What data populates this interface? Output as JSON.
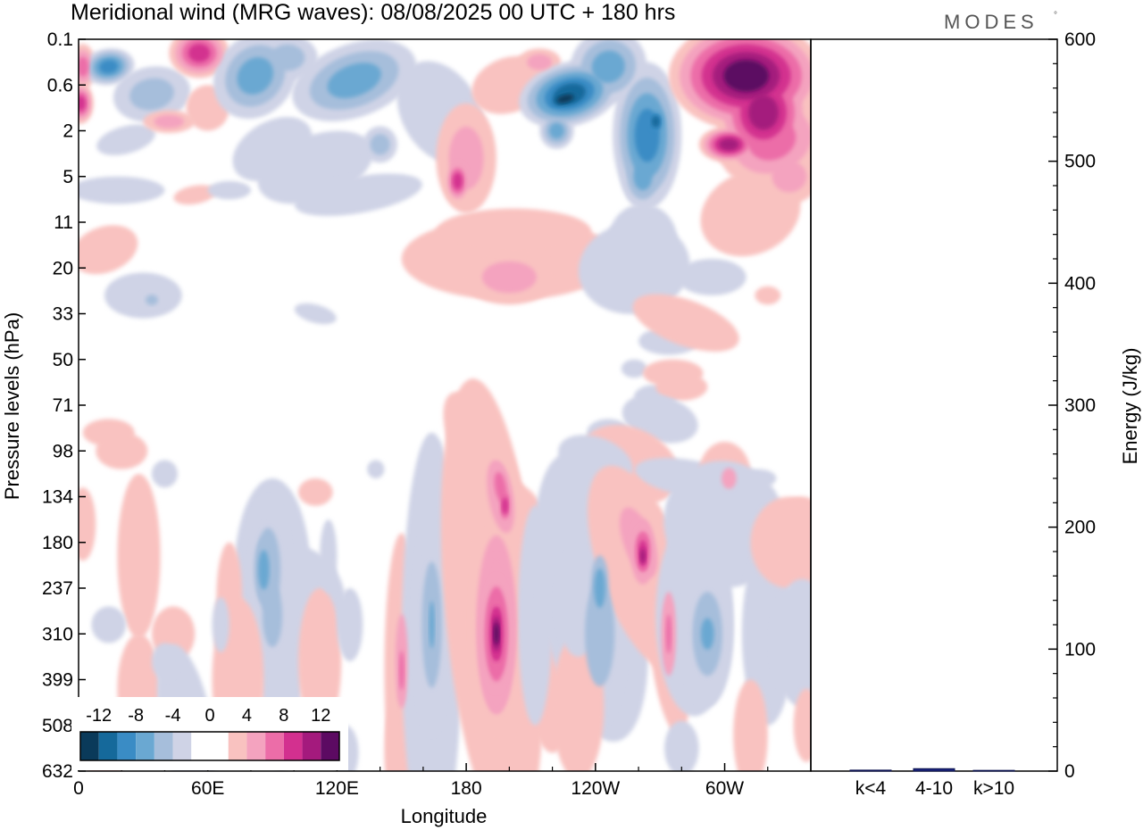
{
  "chart_data": {
    "type": "heatmap",
    "title": "Meridional wind (MRG waves):  08/08/2025  00 UTC  + 180 hrs",
    "brand": "MODES",
    "brand_mark": "°",
    "xlabel": "Longitude",
    "ylabel": "Pressure levels (hPa)",
    "x_ticks": [
      "0",
      "60E",
      "120E",
      "180",
      "120W",
      "60W"
    ],
    "x_tick_degrees": [
      0,
      60,
      120,
      180,
      240,
      300
    ],
    "x_range_degrees": [
      0,
      340
    ],
    "pressure_levels": [
      "0.1",
      "0.6",
      "2",
      "5",
      "11",
      "20",
      "33",
      "50",
      "71",
      "98",
      "134",
      "180",
      "237",
      "310",
      "399",
      "508",
      "632"
    ],
    "colorbar": {
      "labels": [
        "-12",
        "-8",
        "-4",
        "0",
        "4",
        "8",
        "12"
      ],
      "colors": [
        "#0a3a5a",
        "#15699b",
        "#3a8cc5",
        "#6aa8d2",
        "#a6bedb",
        "#cfd3e6",
        "#ffffff",
        "#ffffff",
        "#f9c2c0",
        "#f4a3bf",
        "#ec6da8",
        "#d3308f",
        "#a41a7d",
        "#5c0a62"
      ]
    },
    "energy_panel": {
      "ylabel": "Energy (J/kg)",
      "ylim": [
        0,
        600
      ],
      "y_ticks": [
        0,
        100,
        200,
        300,
        400,
        500,
        600
      ],
      "categories": [
        "k<4",
        "4-10",
        "k>10"
      ],
      "values": [
        0.8,
        2.0,
        0.6
      ]
    }
  }
}
